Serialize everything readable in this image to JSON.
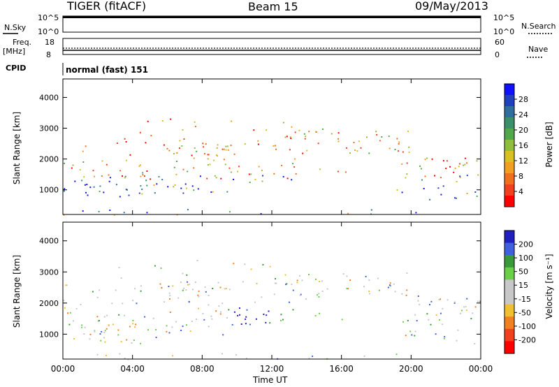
{
  "header": {
    "title": "TIGER (fitACF)",
    "beam": "Beam 15",
    "date": "09/May/2013"
  },
  "chart_data": [
    {
      "type": "line",
      "name_label": "N.Sky",
      "right_label": "N.Search",
      "yticks_left": [
        "10^5",
        "10^0"
      ],
      "yticks_right": [
        "10^5",
        "10^0"
      ]
    },
    {
      "type": "line",
      "left_label_top": "Freq.",
      "left_label_bottom": "[MHz]",
      "right_label": "Nave",
      "yticks_left": [
        "18",
        "8"
      ],
      "yticks_right": [
        "60",
        "0"
      ]
    },
    {
      "type": "table",
      "label": "CPID",
      "value": "normal (fast) 151"
    },
    {
      "type": "heatmap",
      "ylabel": "Slant Range [km]",
      "yticks": [
        1000,
        2000,
        3000,
        4000
      ],
      "ylim": [
        200,
        4600
      ],
      "colorbar_label": "Power [dB]",
      "colorbar_ticks": [
        "4",
        "8",
        "12",
        "16",
        "20",
        "24",
        "28"
      ],
      "colorbar_colors": [
        "#1010ff",
        "#2040c0",
        "#2f6f9f",
        "#3b8f6a",
        "#52a84a",
        "#8fbe3c",
        "#d8c020",
        "#f0a020",
        "#f07020",
        "#f04020",
        "#ff0000"
      ]
    },
    {
      "type": "heatmap",
      "ylabel": "Slant Range [km]",
      "yticks": [
        1000,
        2000,
        3000,
        4000
      ],
      "ylim": [
        200,
        4600
      ],
      "colorbar_label": "Velocity [m s⁻¹]",
      "colorbar_ticks": [
        "200",
        "100",
        "50",
        "15",
        "-15",
        "-50",
        "-100",
        "-200"
      ],
      "colorbar_colors": [
        "#2020c0",
        "#4060e0",
        "#3a9a3a",
        "#6ad04a",
        "#c8c8c8",
        "#c8c8c8",
        "#f0c030",
        "#f08020",
        "#f04020",
        "#ff0000"
      ]
    }
  ],
  "xaxis": {
    "label": "Time UT",
    "ticks": [
      "00:00",
      "04:00",
      "08:00",
      "12:00",
      "16:00",
      "20:00",
      "00:00"
    ]
  }
}
